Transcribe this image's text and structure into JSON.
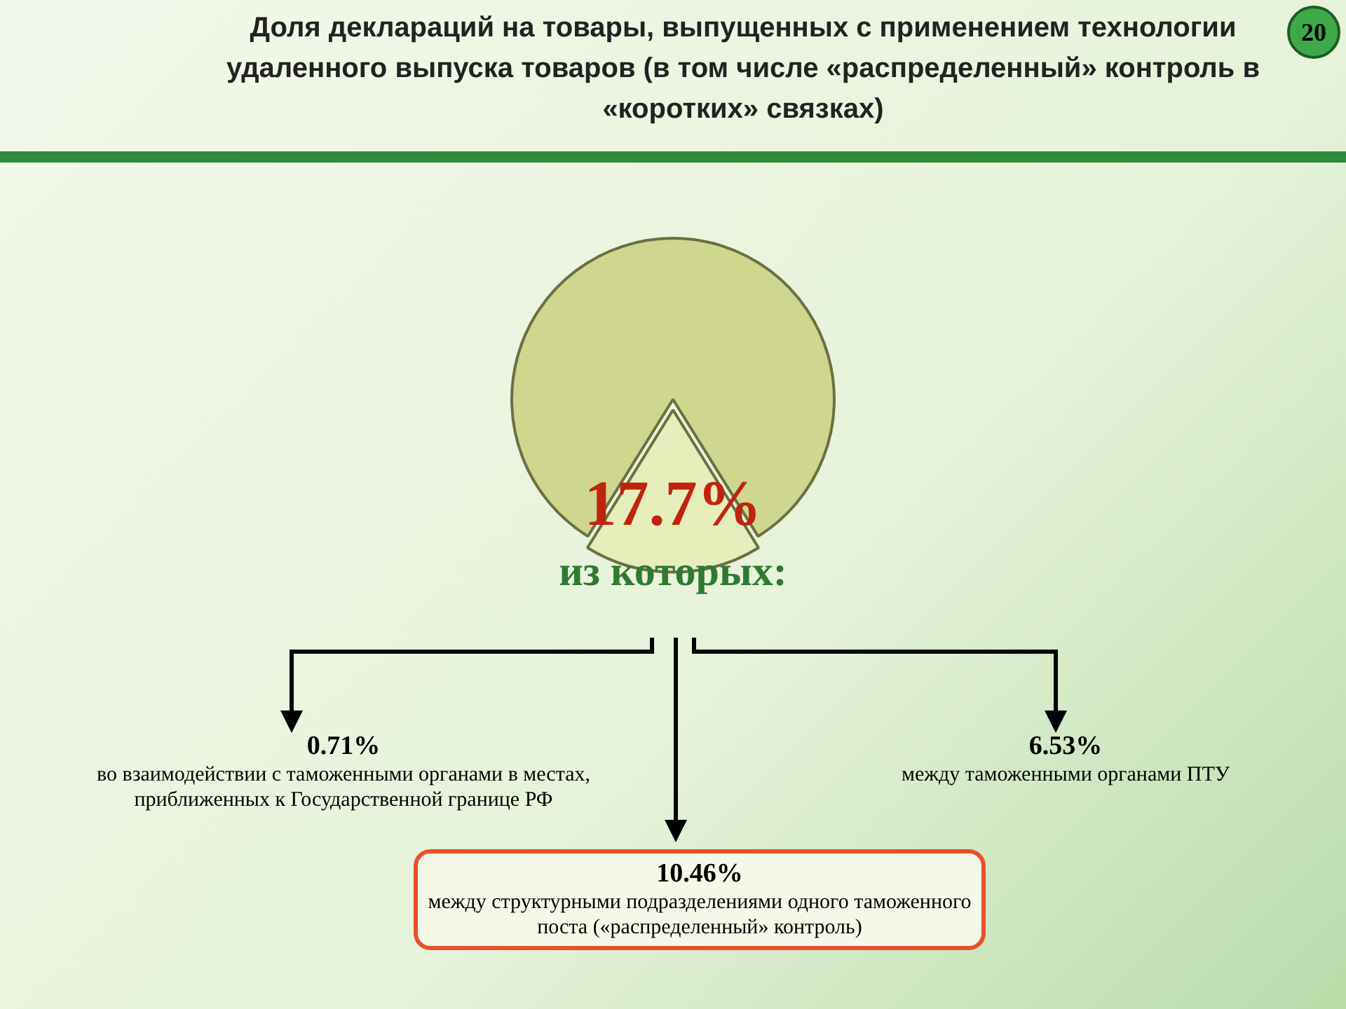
{
  "chart_data": {
    "type": "pie",
    "title": "Доля деклараций на товары, выпущенных с применением технологии удаленного выпуска товаров (в том числе «распределенный» контроль в «коротких» связках)",
    "categories": [
      null,
      null
    ],
    "values": [
      17.7,
      82.3
    ],
    "colors": [
      "#e6eebc",
      "#cfd68e"
    ],
    "value_labels": [
      "17.7%",
      null
    ],
    "legend": false,
    "annotations": [
      "из которых:",
      "0.71%\nво взаимодействии с таможенными органами в местах, приближенных к Государственной границе РФ",
      "10.46%\nмежду структурными подразделениями одного таможенного поста («распределенный» контроль)",
      "6.53%\nмежду таможенными органами ПТУ",
      "20"
    ]
  }
}
